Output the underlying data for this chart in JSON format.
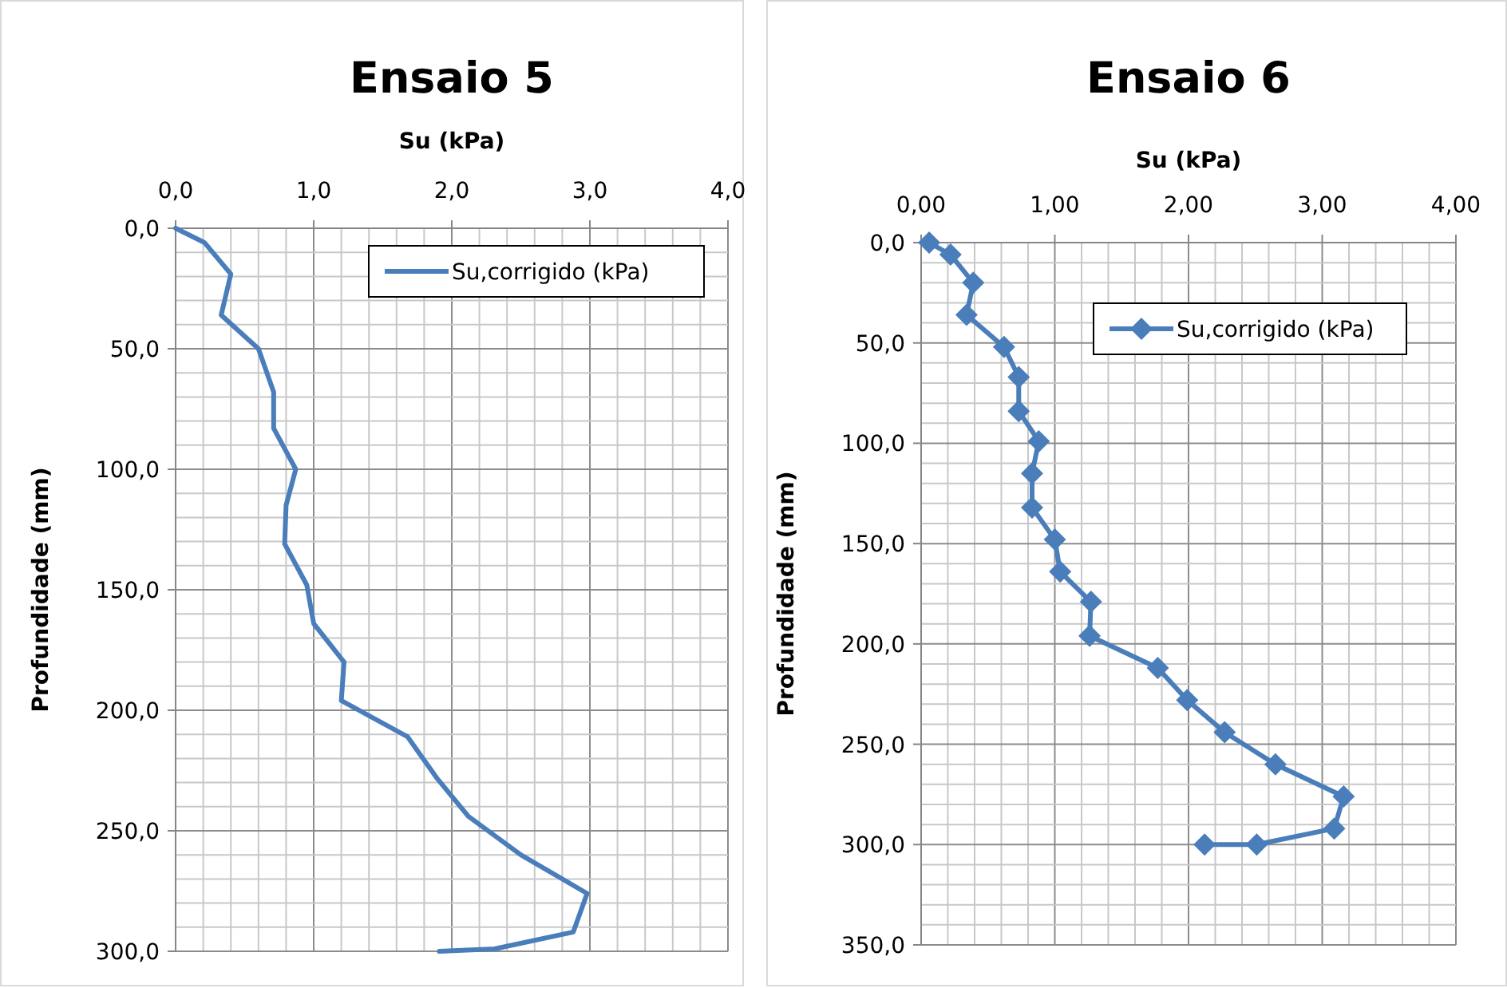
{
  "chart_data": [
    {
      "type": "line",
      "title": "Ensaio 5",
      "xlabel": "Su (kPa)",
      "ylabel": "Profundidade (mm)",
      "legend": "top right",
      "grid": true,
      "marker": "none",
      "line_style": "solid",
      "xlim": [
        0,
        4
      ],
      "ylim": [
        300,
        0
      ],
      "xticks": [
        {
          "value": 0,
          "label": "0,0"
        },
        {
          "value": 0.2,
          "label": null
        },
        {
          "value": 0.4,
          "label": null
        },
        {
          "value": 0.6,
          "label": null
        },
        {
          "value": 0.8,
          "label": null
        },
        {
          "value": 1,
          "label": "1,0"
        },
        {
          "value": 1.2,
          "label": null
        },
        {
          "value": 1.4,
          "label": null
        },
        {
          "value": 1.6,
          "label": null
        },
        {
          "value": 1.8,
          "label": null
        },
        {
          "value": 2,
          "label": "2,0"
        },
        {
          "value": 2.2,
          "label": null
        },
        {
          "value": 2.4,
          "label": null
        },
        {
          "value": 2.6,
          "label": null
        },
        {
          "value": 2.8,
          "label": null
        },
        {
          "value": 3,
          "label": "3,0"
        },
        {
          "value": 3.2,
          "label": null
        },
        {
          "value": 3.4,
          "label": null
        },
        {
          "value": 3.6,
          "label": null
        },
        {
          "value": 3.8,
          "label": null
        },
        {
          "value": 4,
          "label": "4,0"
        }
      ],
      "yticks": [
        {
          "value": 0,
          "label": "0,0"
        },
        {
          "value": 10,
          "label": null
        },
        {
          "value": 20,
          "label": null
        },
        {
          "value": 30,
          "label": null
        },
        {
          "value": 40,
          "label": null
        },
        {
          "value": 50,
          "label": "50,0"
        },
        {
          "value": 60,
          "label": null
        },
        {
          "value": 70,
          "label": null
        },
        {
          "value": 80,
          "label": null
        },
        {
          "value": 90,
          "label": null
        },
        {
          "value": 100,
          "label": "100,0"
        },
        {
          "value": 110,
          "label": null
        },
        {
          "value": 120,
          "label": null
        },
        {
          "value": 130,
          "label": null
        },
        {
          "value": 140,
          "label": null
        },
        {
          "value": 150,
          "label": "150,0"
        },
        {
          "value": 160,
          "label": null
        },
        {
          "value": 170,
          "label": null
        },
        {
          "value": 180,
          "label": null
        },
        {
          "value": 190,
          "label": null
        },
        {
          "value": 200,
          "label": "200,0"
        },
        {
          "value": 210,
          "label": null
        },
        {
          "value": 220,
          "label": null
        },
        {
          "value": 230,
          "label": null
        },
        {
          "value": 240,
          "label": null
        },
        {
          "value": 250,
          "label": "250,0"
        },
        {
          "value": 260,
          "label": null
        },
        {
          "value": 270,
          "label": null
        },
        {
          "value": 280,
          "label": null
        },
        {
          "value": 290,
          "label": null
        },
        {
          "value": 300,
          "label": "300,0"
        }
      ],
      "series": [
        {
          "name": "Su,corrigido (kPa)",
          "color": "#4a7ebb",
          "x": [
            0,
            0.21,
            0.4,
            0.33,
            0.6,
            0.71,
            0.71,
            0.87,
            0.8,
            0.79,
            0.95,
            1.0,
            1.22,
            1.2,
            1.68,
            1.89,
            2.12,
            2.5,
            2.98,
            2.88,
            2.31,
            1.91
          ],
          "values": [
            0,
            6,
            19,
            36,
            50,
            68,
            83,
            100,
            115,
            131,
            148,
            164,
            180,
            196,
            211,
            228,
            244,
            260,
            276,
            292,
            299,
            300
          ]
        }
      ]
    },
    {
      "type": "line",
      "title": "Ensaio 6",
      "xlabel": "Su (kPa)",
      "ylabel": "Profundidade (mm)",
      "legend": "top right",
      "grid": true,
      "marker": "diamond",
      "line_style": "solid",
      "xlim": [
        0,
        4
      ],
      "ylim": [
        350,
        0
      ],
      "xticks": [
        {
          "value": 0,
          "label": "0,00"
        },
        {
          "value": 0.2,
          "label": null
        },
        {
          "value": 0.4,
          "label": null
        },
        {
          "value": 0.6,
          "label": null
        },
        {
          "value": 0.8,
          "label": null
        },
        {
          "value": 1,
          "label": "1,00"
        },
        {
          "value": 1.2,
          "label": null
        },
        {
          "value": 1.4,
          "label": null
        },
        {
          "value": 1.6,
          "label": null
        },
        {
          "value": 1.8,
          "label": null
        },
        {
          "value": 2,
          "label": "2,00"
        },
        {
          "value": 2.2,
          "label": null
        },
        {
          "value": 2.4,
          "label": null
        },
        {
          "value": 2.6,
          "label": null
        },
        {
          "value": 2.8,
          "label": null
        },
        {
          "value": 3,
          "label": "3,00"
        },
        {
          "value": 3.2,
          "label": null
        },
        {
          "value": 3.4,
          "label": null
        },
        {
          "value": 3.6,
          "label": null
        },
        {
          "value": 3.8,
          "label": null
        },
        {
          "value": 4,
          "label": "4,00"
        }
      ],
      "yticks": [
        {
          "value": 0,
          "label": "0,0"
        },
        {
          "value": 10,
          "label": null
        },
        {
          "value": 20,
          "label": null
        },
        {
          "value": 30,
          "label": null
        },
        {
          "value": 40,
          "label": null
        },
        {
          "value": 50,
          "label": "50,0"
        },
        {
          "value": 60,
          "label": null
        },
        {
          "value": 70,
          "label": null
        },
        {
          "value": 80,
          "label": null
        },
        {
          "value": 90,
          "label": null
        },
        {
          "value": 100,
          "label": "100,0"
        },
        {
          "value": 110,
          "label": null
        },
        {
          "value": 120,
          "label": null
        },
        {
          "value": 130,
          "label": null
        },
        {
          "value": 140,
          "label": null
        },
        {
          "value": 150,
          "label": "150,0"
        },
        {
          "value": 160,
          "label": null
        },
        {
          "value": 170,
          "label": null
        },
        {
          "value": 180,
          "label": null
        },
        {
          "value": 190,
          "label": null
        },
        {
          "value": 200,
          "label": "200,0"
        },
        {
          "value": 210,
          "label": null
        },
        {
          "value": 220,
          "label": null
        },
        {
          "value": 230,
          "label": null
        },
        {
          "value": 240,
          "label": null
        },
        {
          "value": 250,
          "label": "250,0"
        },
        {
          "value": 260,
          "label": null
        },
        {
          "value": 270,
          "label": null
        },
        {
          "value": 280,
          "label": null
        },
        {
          "value": 290,
          "label": null
        },
        {
          "value": 300,
          "label": "300,0"
        },
        {
          "value": 310,
          "label": null
        },
        {
          "value": 320,
          "label": null
        },
        {
          "value": 330,
          "label": null
        },
        {
          "value": 340,
          "label": null
        },
        {
          "value": 350,
          "label": "350,0"
        }
      ],
      "series": [
        {
          "name": "Su,corrigido (kPa)",
          "color": "#4a7ebb",
          "x": [
            0.06,
            0.22,
            0.39,
            0.34,
            0.62,
            0.73,
            0.73,
            0.88,
            0.83,
            0.83,
            1.0,
            1.04,
            1.27,
            1.26,
            1.77,
            1.99,
            2.27,
            2.65,
            3.16,
            3.09,
            2.51,
            2.12
          ],
          "values": [
            0,
            6,
            20,
            36,
            52,
            67,
            84,
            99,
            115,
            132,
            148,
            164,
            179,
            196,
            212,
            228,
            244,
            260,
            276,
            292,
            300,
            300
          ]
        }
      ]
    }
  ]
}
